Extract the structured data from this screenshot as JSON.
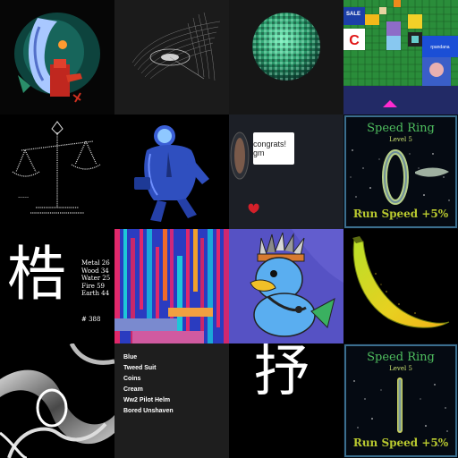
{
  "gallery": {
    "tiles": [
      {
        "name": "abstract-figure-art",
        "icon": "figure-artwork-icon"
      },
      {
        "name": "wireframe-surface-art",
        "icon": "wireframe-icon"
      },
      {
        "name": "green-pixel-sphere-art",
        "icon": "pixel-sphere-icon"
      },
      {
        "name": "pixel-collage-art",
        "sale_label": "SALE"
      },
      {
        "name": "ascii-scale-art",
        "icon": "balance-scale-icon"
      },
      {
        "name": "blue-astronaut-art",
        "icon": "astronaut-icon"
      },
      {
        "name": "congrats-chat-art",
        "message": "congrats! gm"
      },
      {
        "name": "speed-ring-card-1",
        "title": "Speed Ring",
        "level": "Level 5",
        "footer": "Run Speed +5%"
      },
      {
        "name": "kanji-stats-card",
        "kanji": "梏",
        "stats": [
          "Metal 26",
          "Wood 34",
          "Water 25",
          "Fire 59",
          "Earth 44"
        ],
        "number": "# 388"
      },
      {
        "name": "glitch-stripes-art",
        "icon": "stripes-icon"
      },
      {
        "name": "duck-headdress-art",
        "icon": "duck-icon"
      },
      {
        "name": "banana-art",
        "icon": "banana-icon"
      },
      {
        "name": "chrome-swirl-art",
        "icon": "swirl-icon"
      },
      {
        "name": "trait-list-card",
        "traits": [
          "Blue",
          "Tweed Suit",
          "Coins",
          "Cream",
          "Ww2 Pilot Helm",
          "Bored Unshaven"
        ]
      },
      {
        "name": "kanji-card-2",
        "kanji": "抒"
      },
      {
        "name": "speed-ring-card-2",
        "title": "Speed Ring",
        "level": "Level 5",
        "footer": "Run Speed +5%"
      }
    ]
  },
  "colors": {
    "green_title": "#4fbf5f",
    "yellow_footer": "#b9c92f",
    "purple_bg": "#5a55c8",
    "dark_panel": "#1e1e1e"
  }
}
